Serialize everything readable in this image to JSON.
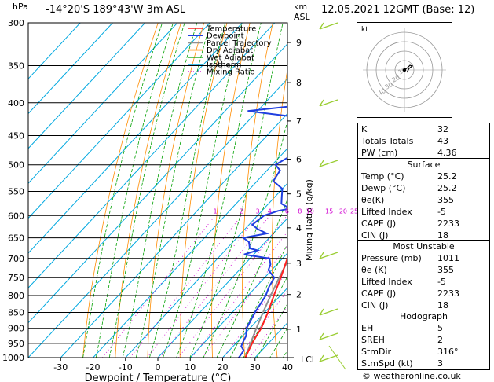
{
  "header": {
    "hpa_label": "hPa",
    "location": "-14°20'S  189°43'W  3m  ASL",
    "km_label": "km",
    "asl_label": "ASL",
    "datetime": "12.05.2021  12GMT  (Base: 12)"
  },
  "footer": {
    "copyright": "© weatheronline.co.uk"
  },
  "colors": {
    "temperature": "#ff2020",
    "dewpoint": "#1f3fe0",
    "parcel": "#909090",
    "dry_adiabat": "#ff8c00",
    "wet_adiabat": "#00a000",
    "isotherm": "#00a8e0",
    "mixing_ratio": "#d000d0"
  },
  "chart_data": {
    "type": "line",
    "title": "",
    "xlabel": "Dewpoint / Temperature (°C)",
    "ylabel": "",
    "ylabel_right": "Mixing Ratio (g/kg)",
    "xlim": [
      -40,
      40
    ],
    "x_ticks": [
      "-30",
      "-20",
      "-10",
      "0",
      "10",
      "20",
      "30",
      "40"
    ],
    "pressure_levels": [
      "300",
      "350",
      "400",
      "450",
      "500",
      "550",
      "600",
      "650",
      "700",
      "750",
      "800",
      "850",
      "900",
      "950",
      "1000"
    ],
    "km_ticks": [
      {
        "km": "1",
        "p": 903
      },
      {
        "km": "2",
        "p": 797
      },
      {
        "km": "3",
        "p": 712
      },
      {
        "km": "4",
        "p": 627
      },
      {
        "km": "5",
        "p": 555
      },
      {
        "km": "6",
        "p": 490
      },
      {
        "km": "7",
        "p": 427
      },
      {
        "km": "8",
        "p": 372
      },
      {
        "km": "9",
        "p": 322
      }
    ],
    "lcl_label": "LCL",
    "mixing_ratio_labels": [
      "1",
      "2",
      "3",
      "4",
      "6",
      "8",
      "10",
      "15",
      "20",
      "25"
    ],
    "legend": [
      "Temperature",
      "Dewpoint",
      "Parcel Trajectory",
      "Dry Adiabat",
      "Wet Adiabat",
      "Isotherm",
      "Mixing Ratio"
    ],
    "series": [
      {
        "name": "Temperature",
        "points": [
          [
            1000,
            27
          ],
          [
            975,
            26
          ],
          [
            950,
            25
          ],
          [
            925,
            24.2
          ],
          [
            900,
            23.5
          ],
          [
            850,
            21
          ],
          [
            800,
            18
          ],
          [
            750,
            15
          ],
          [
            700,
            11.5
          ],
          [
            650,
            8
          ],
          [
            600,
            5
          ],
          [
            550,
            1
          ],
          [
            500,
            -4
          ],
          [
            450,
            -8.5
          ],
          [
            400,
            -14
          ],
          [
            380,
            -17.5
          ],
          [
            350,
            -22.5
          ],
          [
            300,
            -31
          ]
        ]
      },
      {
        "name": "Dewpoint",
        "points": [
          [
            1000,
            25
          ],
          [
            975,
            24.5
          ],
          [
            960,
            22.5
          ],
          [
            950,
            22
          ],
          [
            925,
            21
          ],
          [
            900,
            19
          ],
          [
            850,
            17
          ],
          [
            800,
            15.5
          ],
          [
            775,
            14
          ],
          [
            750,
            13
          ],
          [
            730,
            9
          ],
          [
            715,
            8
          ],
          [
            700,
            6
          ],
          [
            690,
            -3
          ],
          [
            680,
            0
          ],
          [
            675,
            -3
          ],
          [
            660,
            -5
          ],
          [
            650,
            -8
          ],
          [
            640,
            -2
          ],
          [
            630,
            -6
          ],
          [
            620,
            -9
          ],
          [
            600,
            -8
          ],
          [
            590,
            -5
          ],
          [
            585,
            -2
          ],
          [
            575,
            -6
          ],
          [
            560,
            -8
          ],
          [
            545,
            -10
          ],
          [
            530,
            -15
          ],
          [
            510,
            -16
          ],
          [
            500,
            -19
          ],
          [
            485,
            -17
          ],
          [
            470,
            -19
          ],
          [
            455,
            -21
          ],
          [
            440,
            -24
          ],
          [
            430,
            -25
          ],
          [
            420,
            -28
          ],
          [
            412,
            -43
          ],
          [
            405,
            -31
          ],
          [
            400,
            -28
          ],
          [
            380,
            -28
          ],
          [
            365,
            -29
          ],
          [
            350,
            -30
          ],
          [
            330,
            -32
          ],
          [
            310,
            -34
          ],
          [
            300,
            -36
          ]
        ]
      },
      {
        "name": "Parcel Trajectory",
        "points": [
          [
            1000,
            27
          ],
          [
            950,
            24.5
          ],
          [
            900,
            22
          ],
          [
            850,
            19.5
          ],
          [
            800,
            17
          ],
          [
            750,
            14.5
          ],
          [
            700,
            12
          ],
          [
            650,
            9
          ],
          [
            600,
            5.5
          ],
          [
            550,
            2
          ],
          [
            500,
            -2
          ],
          [
            450,
            -7
          ],
          [
            400,
            -12.5
          ],
          [
            350,
            -19
          ],
          [
            300,
            -27
          ]
        ]
      }
    ]
  },
  "hodograph": {
    "label": "kt",
    "ring_labels": [
      "10",
      "20",
      "30",
      "40"
    ]
  },
  "indices": {
    "rows": [
      {
        "label": "K",
        "value": "32"
      },
      {
        "label": "Totals Totals",
        "value": "43"
      },
      {
        "label": "PW (cm)",
        "value": "4.36"
      }
    ]
  },
  "surface": {
    "title": "Surface",
    "rows": [
      {
        "label": "Temp (°C)",
        "value": "25.2"
      },
      {
        "label": "Dewp (°C)",
        "value": "25.2"
      },
      {
        "label": "θe(K)",
        "value": "355"
      },
      {
        "label": "Lifted Index",
        "value": "-5"
      },
      {
        "label": "CAPE (J)",
        "value": "2233"
      },
      {
        "label": "CIN (J)",
        "value": "18"
      }
    ]
  },
  "most_unstable": {
    "title": "Most Unstable",
    "rows": [
      {
        "label": "Pressure (mb)",
        "value": "1011"
      },
      {
        "label": "θe (K)",
        "value": "355"
      },
      {
        "label": "Lifted Index",
        "value": "-5"
      },
      {
        "label": "CAPE (J)",
        "value": "2233"
      },
      {
        "label": "CIN (J)",
        "value": "18"
      }
    ]
  },
  "hodograph_table": {
    "title": "Hodograph",
    "rows": [
      {
        "label": "EH",
        "value": "5"
      },
      {
        "label": "SREH",
        "value": "2"
      },
      {
        "label": "StmDir",
        "value": "316°"
      },
      {
        "label": "StmSpd (kt)",
        "value": "3"
      }
    ]
  }
}
